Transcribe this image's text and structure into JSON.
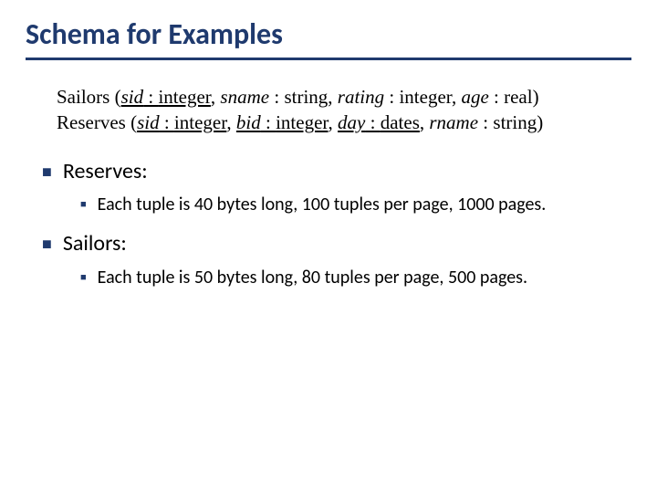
{
  "colors": {
    "accent": "#1f3a6e",
    "text": "#000000",
    "background": "#ffffff"
  },
  "title": "Schema for Examples",
  "schema": {
    "sailors": {
      "relation": "Sailors",
      "open": " (",
      "close": ")",
      "a1_name": "sid",
      "a1_sep": " : ",
      "a1_type": "integer",
      "a1_comma": ", ",
      "a2_name": "sname",
      "a2_sep": " : ",
      "a2_type": "string",
      "a2_comma": ", ",
      "a3_name": "rating",
      "a3_sep": " : ",
      "a3_type": "integer",
      "a3_comma": ", ",
      "a4_name": "age",
      "a4_sep": " : ",
      "a4_type": "real"
    },
    "reserves": {
      "relation": "Reserves",
      "open": " (",
      "close": ")",
      "a1_name": "sid",
      "a1_sep": " : ",
      "a1_type": "integer",
      "a1_comma": ", ",
      "a2_name": "bid",
      "a2_sep": " : ",
      "a2_type": "integer",
      "a2_comma": ", ",
      "a3_name": "day",
      "a3_sep": " : ",
      "a3_type": "dates",
      "a3_comma": ", ",
      "a4_name": "rname",
      "a4_sep": " : ",
      "a4_type": "string"
    }
  },
  "bullets": {
    "reserves_label": "Reserves:",
    "reserves_detail": "Each tuple is 40 bytes long,  100 tuples per page, 1000 pages.",
    "sailors_label": "Sailors:",
    "sailors_detail": "Each tuple is 50 bytes long,  80 tuples per page, 500 pages."
  }
}
